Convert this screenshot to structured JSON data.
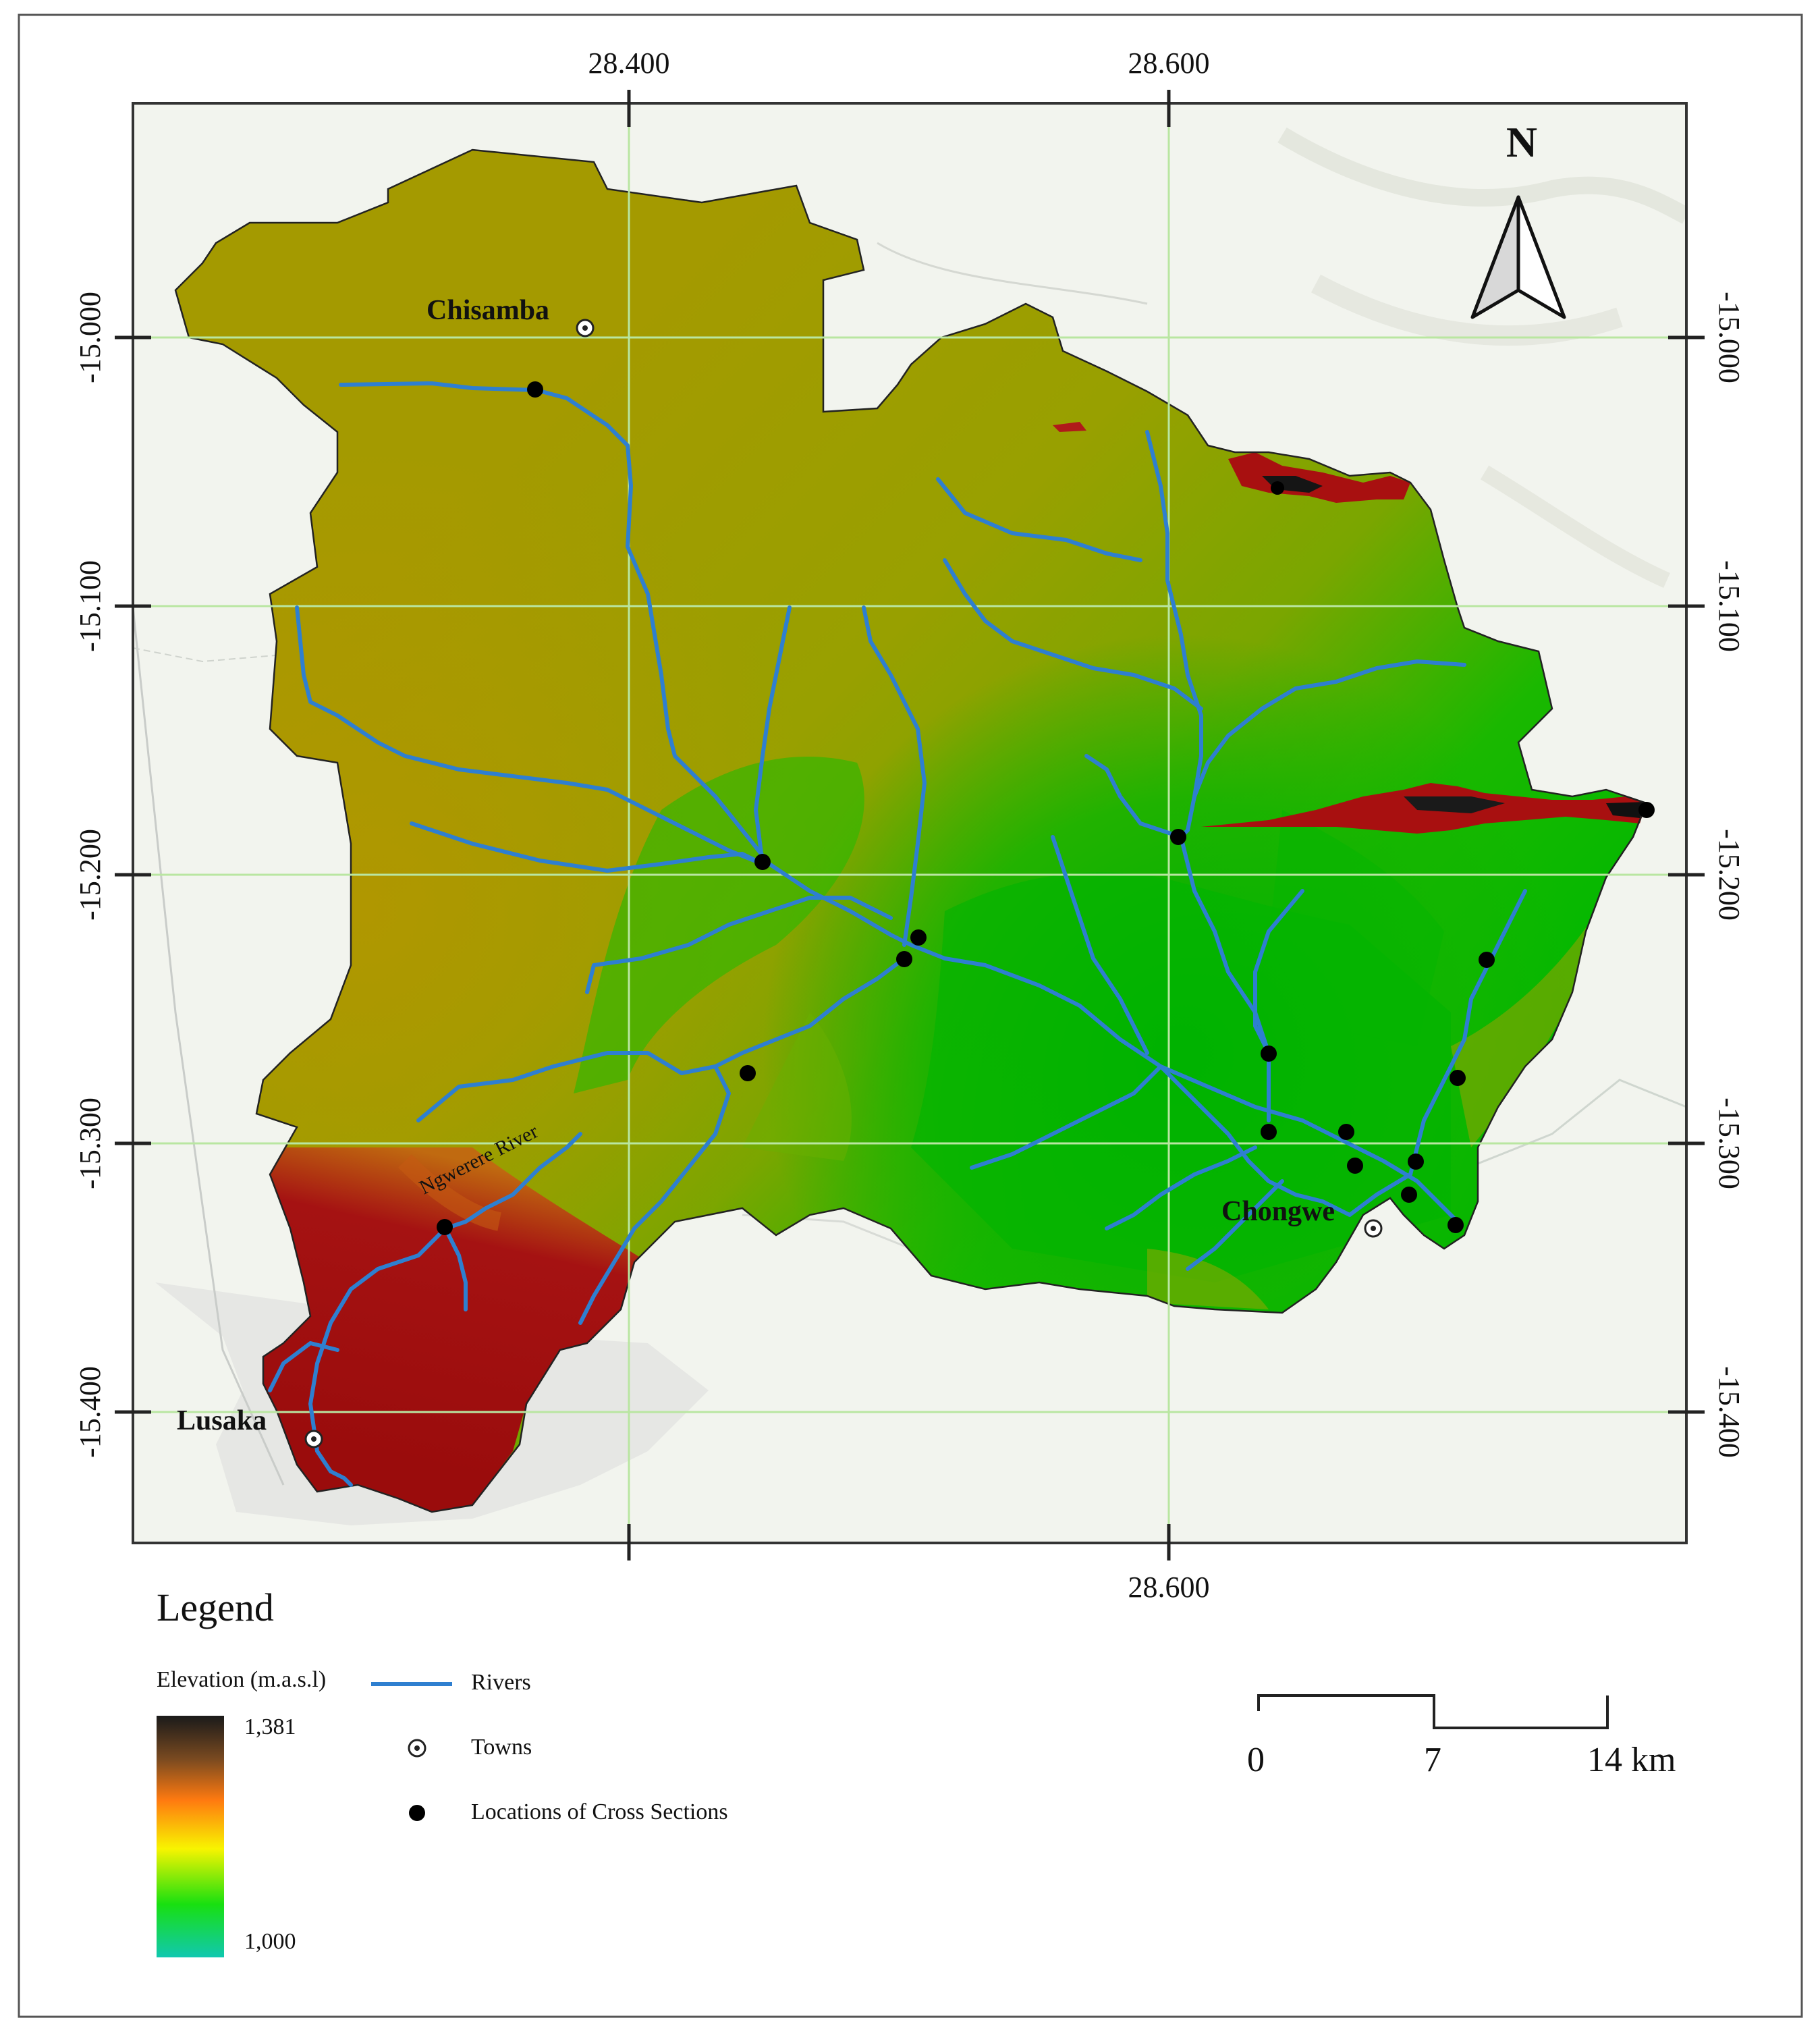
{
  "map": {
    "x_ticks": [
      "28.400",
      "28.600"
    ],
    "y_ticks": [
      "-15.000",
      "-15.100",
      "-15.200",
      "-15.300",
      "-15.400"
    ],
    "north_label": "N",
    "towns": [
      {
        "name": "Chisamba"
      },
      {
        "name": "Chongwe"
      },
      {
        "name": "Lusaka"
      }
    ],
    "river_label": "Ngwerere River",
    "cross_section_count": 18
  },
  "legend": {
    "title": "Legend",
    "elevation_title": "Elevation (m.a.s.l)",
    "elevation_max": "1,381",
    "elevation_min": "1,000",
    "rivers": "Rivers",
    "towns": "Towns",
    "cross_sections": "Locations of Cross Sections"
  },
  "scale_bar": {
    "labels": [
      "0",
      "7",
      "14 km"
    ]
  },
  "colors": {
    "river": "#2e7fd0",
    "low_elevation": "#00c2a8",
    "mid_elevation": "#00b300",
    "high_elevation": "#a51010",
    "peak_elevation": "#1a1a1a",
    "graticule": "#b9e6a1"
  }
}
